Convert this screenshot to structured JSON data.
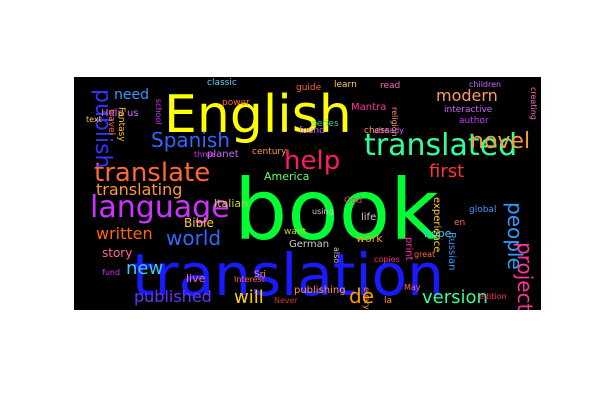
{
  "figure": {
    "background": "#000000",
    "page_background": "#ffffff",
    "words": [
      {
        "text": "book",
        "color": "#00ff33"
      },
      {
        "text": "translation",
        "color": "#1a1aff"
      },
      {
        "text": "English",
        "color": "#ffff00"
      },
      {
        "text": "language",
        "color": "#cc33ff"
      },
      {
        "text": "translated",
        "color": "#33ff99"
      },
      {
        "text": "help",
        "color": "#ff1a66"
      },
      {
        "text": "translate",
        "color": "#ff6633"
      },
      {
        "text": "Spanish",
        "color": "#3366ff"
      },
      {
        "text": "novel",
        "color": "#ff9933"
      },
      {
        "text": "people",
        "color": "#3399ff"
      },
      {
        "text": "project",
        "color": "#ff3399"
      },
      {
        "text": "publish",
        "color": "#3333ff"
      },
      {
        "text": "world",
        "color": "#3366ff"
      },
      {
        "text": "translating",
        "color": "#ff9933"
      },
      {
        "text": "written",
        "color": "#ff6600"
      },
      {
        "text": "new",
        "color": "#33ccff"
      },
      {
        "text": "published",
        "color": "#6633ff"
      },
      {
        "text": "will",
        "color": "#ffcc00"
      },
      {
        "text": "de",
        "color": "#ff9900"
      },
      {
        "text": "version",
        "color": "#33ff99"
      },
      {
        "text": "first",
        "color": "#ff3333"
      },
      {
        "text": "modern",
        "color": "#ff9966"
      },
      {
        "text": "need",
        "color": "#3399ff"
      },
      {
        "text": "story",
        "color": "#ff6699"
      },
      {
        "text": "Bible",
        "color": "#ffcc33"
      },
      {
        "text": "America",
        "color": "#66ff66"
      },
      {
        "text": "Italian",
        "color": "#cccc33"
      },
      {
        "text": "German",
        "color": "#cccccc"
      },
      {
        "text": "Russian",
        "color": "#3399ff"
      },
      {
        "text": "work",
        "color": "#ff9933"
      },
      {
        "text": "publishing",
        "color": "#ff9933"
      },
      {
        "text": "live",
        "color": "#ff6699"
      },
      {
        "text": "life",
        "color": "#cccccc"
      },
      {
        "text": "hope",
        "color": "#33ccff"
      },
      {
        "text": "print",
        "color": "#ff3399"
      },
      {
        "text": "experience",
        "color": "#ffcc33"
      },
      {
        "text": "planet",
        "color": "#cc66ff"
      },
      {
        "text": "century",
        "color": "#ff9933"
      },
      {
        "text": "series",
        "color": "#33cc99"
      },
      {
        "text": "classic",
        "color": "#66ccff"
      },
      {
        "text": "guide",
        "color": "#ff6633"
      },
      {
        "text": "learn",
        "color": "#ffcc66"
      },
      {
        "text": "read",
        "color": "#ff66cc"
      },
      {
        "text": "Help us",
        "color": "#cc66ff"
      },
      {
        "text": "Mantra",
        "color": "#ff3399"
      },
      {
        "text": "found",
        "color": "#cc66ff"
      },
      {
        "text": "chess",
        "color": "#ff9933"
      },
      {
        "text": "Fantasy",
        "color": "#ffcc00"
      },
      {
        "text": "travel",
        "color": "#ff6633"
      },
      {
        "text": "God",
        "color": "#ff3366"
      },
      {
        "text": "Sri",
        "color": "#ff9966"
      },
      {
        "text": "fund",
        "color": "#cc33ff"
      },
      {
        "text": "Never",
        "color": "#cc3333"
      },
      {
        "text": "la",
        "color": "#ff9900"
      },
      {
        "text": "global",
        "color": "#3399ff"
      },
      {
        "text": "interactive",
        "color": "#cc66ff"
      },
      {
        "text": "author",
        "color": "#cc33ff"
      },
      {
        "text": "edition",
        "color": "#ff3366"
      },
      {
        "text": "using",
        "color": "#cccccc"
      },
      {
        "text": "want",
        "color": "#cccc33"
      },
      {
        "text": "three",
        "color": "#cc33ff"
      },
      {
        "text": "Interest",
        "color": "#ff6633"
      },
      {
        "text": "copies",
        "color": "#ff3366"
      },
      {
        "text": "already",
        "color": "#cc66ff"
      },
      {
        "text": "also",
        "color": "#cccccc"
      },
      {
        "text": "everyone",
        "color": "#ff9933"
      },
      {
        "text": "great",
        "color": "#ff6633"
      },
      {
        "text": "religion",
        "color": "#ff9966"
      },
      {
        "text": "power",
        "color": "#ff6633"
      },
      {
        "text": "school",
        "color": "#cc33ff"
      },
      {
        "text": "text",
        "color": "#ffcc66"
      },
      {
        "text": "en",
        "color": "#ff6666"
      },
      {
        "text": "May",
        "color": "#ff6666"
      },
      {
        "text": "creating",
        "color": "#ff66cc"
      },
      {
        "text": "children",
        "color": "#cc66ff"
      }
    ]
  }
}
